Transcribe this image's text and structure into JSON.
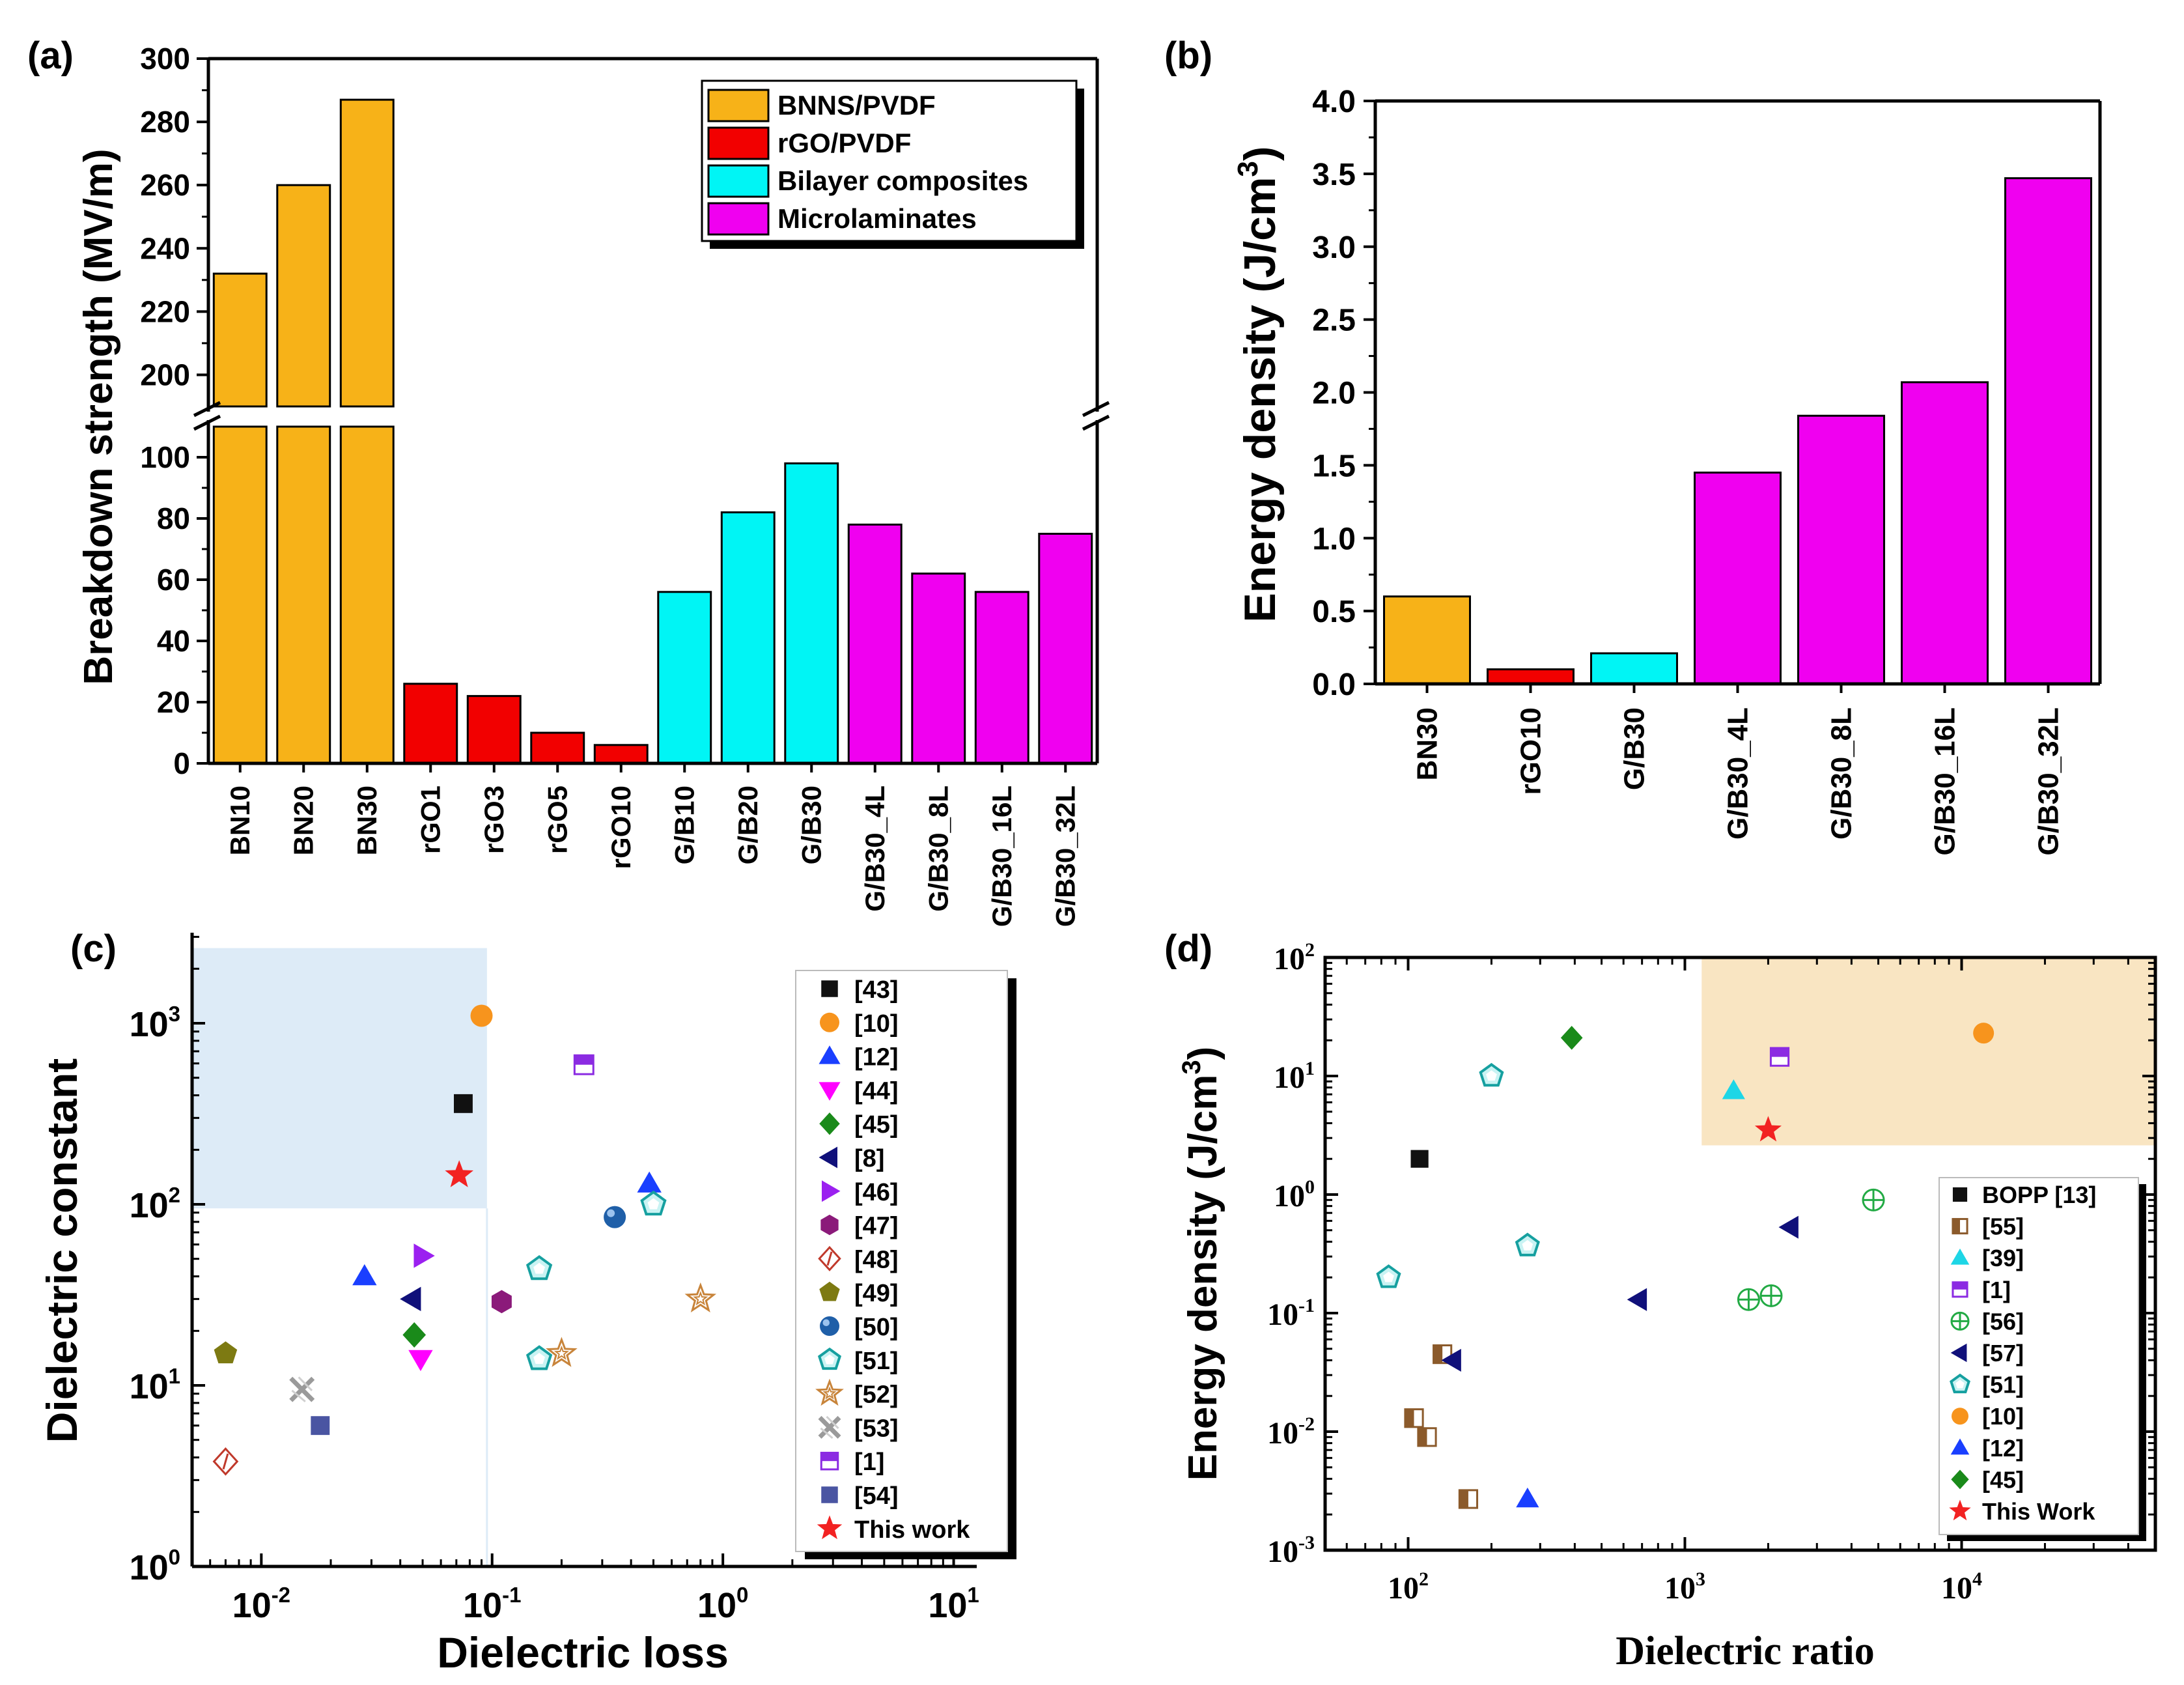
{
  "chart_data": [
    {
      "panel": "(a)",
      "type": "bar",
      "ylabel": "Breakdown strength (MV/m)",
      "ylim_lower": [
        0,
        110
      ],
      "ylim_upper": [
        190,
        300
      ],
      "yticks_lower": [
        "0",
        "20",
        "40",
        "60",
        "80",
        "100"
      ],
      "yticks_upper": [
        "200",
        "220",
        "240",
        "260",
        "280",
        "300"
      ],
      "axis_break": true,
      "categories": [
        "BN10",
        "BN20",
        "BN30",
        "rGO1",
        "rGO3",
        "rGO5",
        "rGO10",
        "G/B10",
        "G/B20",
        "G/B30",
        "G/B30_4L",
        "G/B30_8L",
        "G/B30_16L",
        "G/B30_32L"
      ],
      "values": [
        232,
        260,
        287,
        26,
        22,
        10,
        6,
        56,
        82,
        98,
        78,
        62,
        56,
        75
      ],
      "groups": [
        0,
        0,
        0,
        1,
        1,
        1,
        1,
        2,
        2,
        2,
        3,
        3,
        3,
        3
      ],
      "legend": {
        "position": "top-right",
        "entries": [
          {
            "label": "BNNS/PVDF",
            "color": "#F7B218"
          },
          {
            "label": "rGO/PVDF",
            "color": "#F20000"
          },
          {
            "label": "Bilayer composites",
            "color": "#00F5F5"
          },
          {
            "label": "Microlaminates",
            "color": "#F000F0"
          }
        ]
      }
    },
    {
      "panel": "(b)",
      "type": "bar",
      "ylabel": "Energy density (J/cm",
      "ylabel_sup": "3",
      "ylabel_close": ")",
      "ylim": [
        0,
        4.0
      ],
      "yticks": [
        "0.0",
        "0.5",
        "1.0",
        "1.5",
        "2.0",
        "2.5",
        "3.0",
        "3.5",
        "4.0"
      ],
      "categories": [
        "BN30",
        "rGO10",
        "G/B30",
        "G/B30_4L",
        "G/B30_8L",
        "G/B30_16L",
        "G/B30_32L"
      ],
      "values": [
        0.6,
        0.1,
        0.21,
        1.45,
        1.84,
        2.07,
        3.47
      ],
      "colors": [
        "#F7B218",
        "#F20000",
        "#00F5F5",
        "#F000F0",
        "#F000F0",
        "#F000F0",
        "#F000F0"
      ]
    },
    {
      "panel": "(c)",
      "type": "scatter",
      "xlabel": "Dielectric loss",
      "ylabel": "Dielectric constant",
      "xscale": "log",
      "yscale": "log",
      "xlim_exp": [
        -2.3,
        1.1
      ],
      "ylim_exp": [
        0,
        3.5
      ],
      "xticks": [
        {
          "base": "10",
          "exp": "-2",
          "e": -2
        },
        {
          "base": "10",
          "exp": "-1",
          "e": -1
        },
        {
          "base": "10",
          "exp": "0",
          "e": 0
        },
        {
          "base": "10",
          "exp": "1",
          "e": 1
        }
      ],
      "yticks": [
        {
          "base": "10",
          "exp": "0",
          "e": 0
        },
        {
          "base": "10",
          "exp": "1",
          "e": 1
        },
        {
          "base": "10",
          "exp": "2",
          "e": 2
        },
        {
          "base": "10",
          "exp": "3",
          "e": 3
        }
      ],
      "highlight_region": {
        "x": [
          0.005,
          0.095
        ],
        "y": [
          95,
          2600
        ],
        "color": "#DDEBF7"
      },
      "legend": {
        "position": "right"
      },
      "series": [
        {
          "name": "[43]",
          "marker": "square",
          "color": "#111111",
          "points": [
            [
              0.075,
              360
            ]
          ]
        },
        {
          "name": "[10]",
          "marker": "circle",
          "color": "#F7941D",
          "points": [
            [
              0.09,
              1100
            ]
          ]
        },
        {
          "name": "[12]",
          "marker": "triangle",
          "color": "#1A3FFF",
          "points": [
            [
              0.028,
              40
            ],
            [
              0.48,
              130
            ]
          ]
        },
        {
          "name": "[44]",
          "marker": "triangle-down",
          "color": "#FF00FF",
          "points": [
            [
              0.049,
              14
            ]
          ]
        },
        {
          "name": "[45]",
          "marker": "diamond",
          "color": "#1A8A1A",
          "points": [
            [
              0.046,
              19
            ]
          ]
        },
        {
          "name": "[8]",
          "marker": "triangle-left",
          "color": "#10107A",
          "points": [
            [
              0.045,
              30
            ]
          ]
        },
        {
          "name": "[46]",
          "marker": "triangle-right",
          "color": "#9B20F0",
          "points": [
            [
              0.05,
              52
            ]
          ]
        },
        {
          "name": "[47]",
          "marker": "hexagon",
          "color": "#8B1A7A",
          "points": [
            [
              0.11,
              29
            ]
          ]
        },
        {
          "name": "[48]",
          "marker": "diamond-open",
          "color": "#C0392B",
          "points": [
            [
              0.007,
              3.8
            ]
          ]
        },
        {
          "name": "[49]",
          "marker": "pentagon",
          "color": "#7D7A12",
          "points": [
            [
              0.007,
              15
            ]
          ]
        },
        {
          "name": "[50]",
          "marker": "sphere",
          "color": "#1F5FA8",
          "points": [
            [
              0.34,
              85
            ]
          ]
        },
        {
          "name": "[51]",
          "marker": "pentagon-open",
          "color": "#16A0A0",
          "points": [
            [
              0.16,
              44
            ],
            [
              0.16,
              14
            ],
            [
              0.5,
              100
            ]
          ]
        },
        {
          "name": "[52]",
          "marker": "star-open",
          "color": "#C8843A",
          "points": [
            [
              0.2,
              15
            ],
            [
              0.8,
              30
            ]
          ]
        },
        {
          "name": "[53]",
          "marker": "x-hatch",
          "color": "#9A9A9A",
          "points": [
            [
              0.015,
              9.5
            ]
          ]
        },
        {
          "name": "[1]",
          "marker": "square-half",
          "color": "#8B2BE2",
          "points": [
            [
              0.25,
              590
            ]
          ]
        },
        {
          "name": "[54]",
          "marker": "square",
          "color": "#4A55A2",
          "points": [
            [
              0.018,
              6
            ]
          ]
        },
        {
          "name": "This work",
          "marker": "star",
          "color": "#F22222",
          "points": [
            [
              0.072,
              145
            ]
          ]
        }
      ]
    },
    {
      "panel": "(d)",
      "type": "scatter",
      "xlabel": "Dielectric ratio",
      "ylabel": "Energy density (J/cm",
      "ylabel_sup": "3",
      "ylabel_close": ")",
      "xscale": "log",
      "yscale": "log",
      "xlim_exp": [
        1.7,
        4.7
      ],
      "ylim_exp": [
        -3,
        2
      ],
      "xticks": [
        {
          "base": "10",
          "exp": "2",
          "e": 2
        },
        {
          "base": "10",
          "exp": "3",
          "e": 3
        },
        {
          "base": "10",
          "exp": "4",
          "e": 4
        }
      ],
      "yticks": [
        {
          "base": "10",
          "exp": "-3",
          "e": -3
        },
        {
          "base": "10",
          "exp": "-2",
          "e": -2
        },
        {
          "base": "10",
          "exp": "-1",
          "e": -1
        },
        {
          "base": "10",
          "exp": "0",
          "e": 0
        },
        {
          "base": "10",
          "exp": "1",
          "e": 1
        },
        {
          "base": "10",
          "exp": "2",
          "e": 2
        }
      ],
      "highlight_region": {
        "x": [
          1150,
          50000
        ],
        "y": [
          2.6,
          100
        ],
        "color": "#F9E5C2"
      },
      "legend": {
        "position": "bottom-right"
      },
      "series": [
        {
          "name": "BOPP [13]",
          "marker": "square",
          "color": "#111111",
          "points": [
            [
              110,
              2
            ]
          ]
        },
        {
          "name": "[55]",
          "marker": "square-half-brown",
          "color": "#8B5A2B",
          "points": [
            [
              133,
              0.045
            ],
            [
              105,
              0.013
            ],
            [
              117,
              0.009
            ],
            [
              165,
              0.0027
            ]
          ]
        },
        {
          "name": "[39]",
          "marker": "triangle",
          "color": "#1ED6E6",
          "points": [
            [
              1500,
              7.5
            ]
          ]
        },
        {
          "name": "[1]",
          "marker": "square-half",
          "color": "#8B2BE2",
          "points": [
            [
              2200,
              14.5
            ]
          ]
        },
        {
          "name": "[56]",
          "marker": "circle-plus",
          "color": "#22AA44",
          "points": [
            [
              1700,
              0.13
            ],
            [
              2050,
              0.14
            ],
            [
              4800,
              0.9
            ]
          ]
        },
        {
          "name": "[57]",
          "marker": "triangle-left",
          "color": "#10107A",
          "points": [
            [
              145,
              0.04
            ],
            [
              680,
              0.13
            ],
            [
              2400,
              0.53
            ]
          ]
        },
        {
          "name": "[51]",
          "marker": "pentagon-open",
          "color": "#16A0A0",
          "points": [
            [
              85,
              0.2
            ],
            [
              270,
              0.37
            ],
            [
              200,
              10
            ]
          ]
        },
        {
          "name": "[10]",
          "marker": "circle",
          "color": "#F7941D",
          "points": [
            [
              12000,
              23
            ]
          ]
        },
        {
          "name": "[12]",
          "marker": "triangle",
          "color": "#1A3FFF",
          "points": [
            [
              270,
              0.0027
            ]
          ]
        },
        {
          "name": "[45]",
          "marker": "diamond",
          "color": "#1A8A1A",
          "points": [
            [
              390,
              21
            ]
          ]
        },
        {
          "name": "This Work",
          "marker": "star",
          "color": "#F22222",
          "points": [
            [
              2000,
              3.5
            ]
          ]
        }
      ]
    }
  ]
}
